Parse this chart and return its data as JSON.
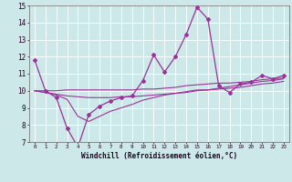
{
  "xlabel": "Windchill (Refroidissement éolien,°C)",
  "x": [
    0,
    1,
    2,
    3,
    4,
    5,
    6,
    7,
    8,
    9,
    10,
    11,
    12,
    13,
    14,
    15,
    16,
    17,
    18,
    19,
    20,
    21,
    22,
    23
  ],
  "line1": [
    11.8,
    10.0,
    9.6,
    7.8,
    6.7,
    8.6,
    9.1,
    9.4,
    9.6,
    9.7,
    10.6,
    12.1,
    11.1,
    12.0,
    13.3,
    14.9,
    14.2,
    10.3,
    9.9,
    10.4,
    10.5,
    10.9,
    10.7,
    10.9
  ],
  "line2": [
    10.0,
    10.0,
    10.0,
    10.05,
    10.05,
    10.05,
    10.05,
    10.05,
    10.05,
    10.05,
    10.1,
    10.1,
    10.15,
    10.2,
    10.3,
    10.35,
    10.4,
    10.45,
    10.45,
    10.5,
    10.55,
    10.65,
    10.7,
    10.75
  ],
  "line3": [
    10.0,
    9.9,
    9.8,
    9.7,
    9.65,
    9.6,
    9.6,
    9.6,
    9.65,
    9.65,
    9.7,
    9.75,
    9.8,
    9.85,
    9.9,
    10.0,
    10.05,
    10.1,
    10.15,
    10.2,
    10.3,
    10.4,
    10.45,
    10.55
  ],
  "line4": [
    10.0,
    9.9,
    9.75,
    9.5,
    8.5,
    8.2,
    8.5,
    8.8,
    9.0,
    9.2,
    9.45,
    9.6,
    9.75,
    9.85,
    9.95,
    10.05,
    10.05,
    10.15,
    10.25,
    10.35,
    10.45,
    10.55,
    10.6,
    10.7
  ],
  "color_main": "#993399",
  "color_lines": "#993399",
  "bg_color": "#cce8e8",
  "grid_color": "#b0d8d8",
  "ylim": [
    7,
    15
  ],
  "xlim": [
    -0.5,
    23.5
  ],
  "yticks": [
    7,
    8,
    9,
    10,
    11,
    12,
    13,
    14,
    15
  ]
}
